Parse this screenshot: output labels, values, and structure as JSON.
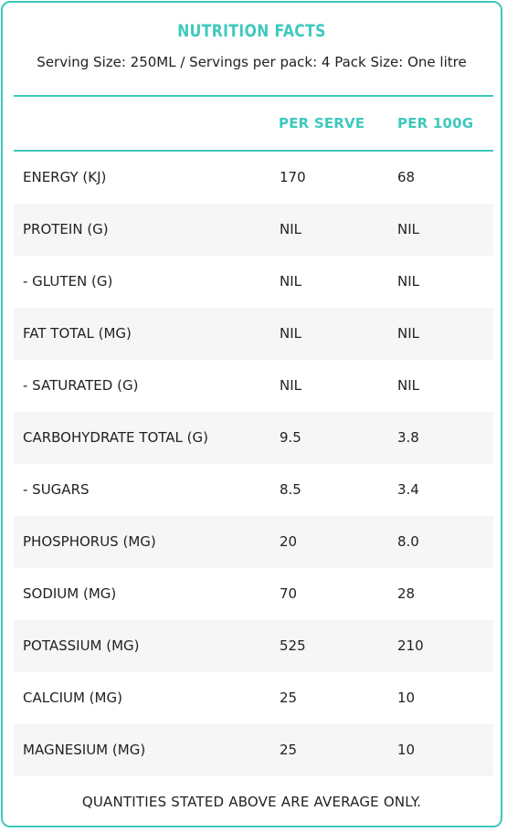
{
  "panel": {
    "title": "NUTRITION FACTS",
    "subtitle": "Serving Size: 250ML / Servings per pack: 4 Pack Size: One litre",
    "columns": [
      "PER SERVE",
      "PER 100G"
    ],
    "rows": [
      {
        "label": "ENERGY (KJ)",
        "per_serve": "170",
        "per_100g": "68"
      },
      {
        "label": "PROTEIN (G)",
        "per_serve": "NIL",
        "per_100g": "NIL"
      },
      {
        "label": "- GLUTEN (G)",
        "per_serve": "NIL",
        "per_100g": "NIL"
      },
      {
        "label": "FAT TOTAL (MG)",
        "per_serve": "NIL",
        "per_100g": "NIL"
      },
      {
        "label": "- SATURATED (G)",
        "per_serve": "NIL",
        "per_100g": "NIL"
      },
      {
        "label": "CARBOHYDRATE TOTAL (G)",
        "per_serve": "9.5",
        "per_100g": "3.8"
      },
      {
        "label": "- SUGARS",
        "per_serve": "8.5",
        "per_100g": "3.4"
      },
      {
        "label": "PHOSPHORUS (MG)",
        "per_serve": "20",
        "per_100g": "8.0"
      },
      {
        "label": "SODIUM (MG)",
        "per_serve": "70",
        "per_100g": "28"
      },
      {
        "label": "POTASSIUM (MG)",
        "per_serve": "525",
        "per_100g": "210"
      },
      {
        "label": "CALCIUM (MG)",
        "per_serve": "25",
        "per_100g": "10"
      },
      {
        "label": "MAGNESIUM (MG)",
        "per_serve": "25",
        "per_100g": "10"
      }
    ],
    "footnote": "QUANTITIES STATED ABOVE ARE AVERAGE ONLY."
  },
  "colors": {
    "accent": "#3ec9bd",
    "text": "#222222",
    "row_alt": "#f6f6f6"
  }
}
